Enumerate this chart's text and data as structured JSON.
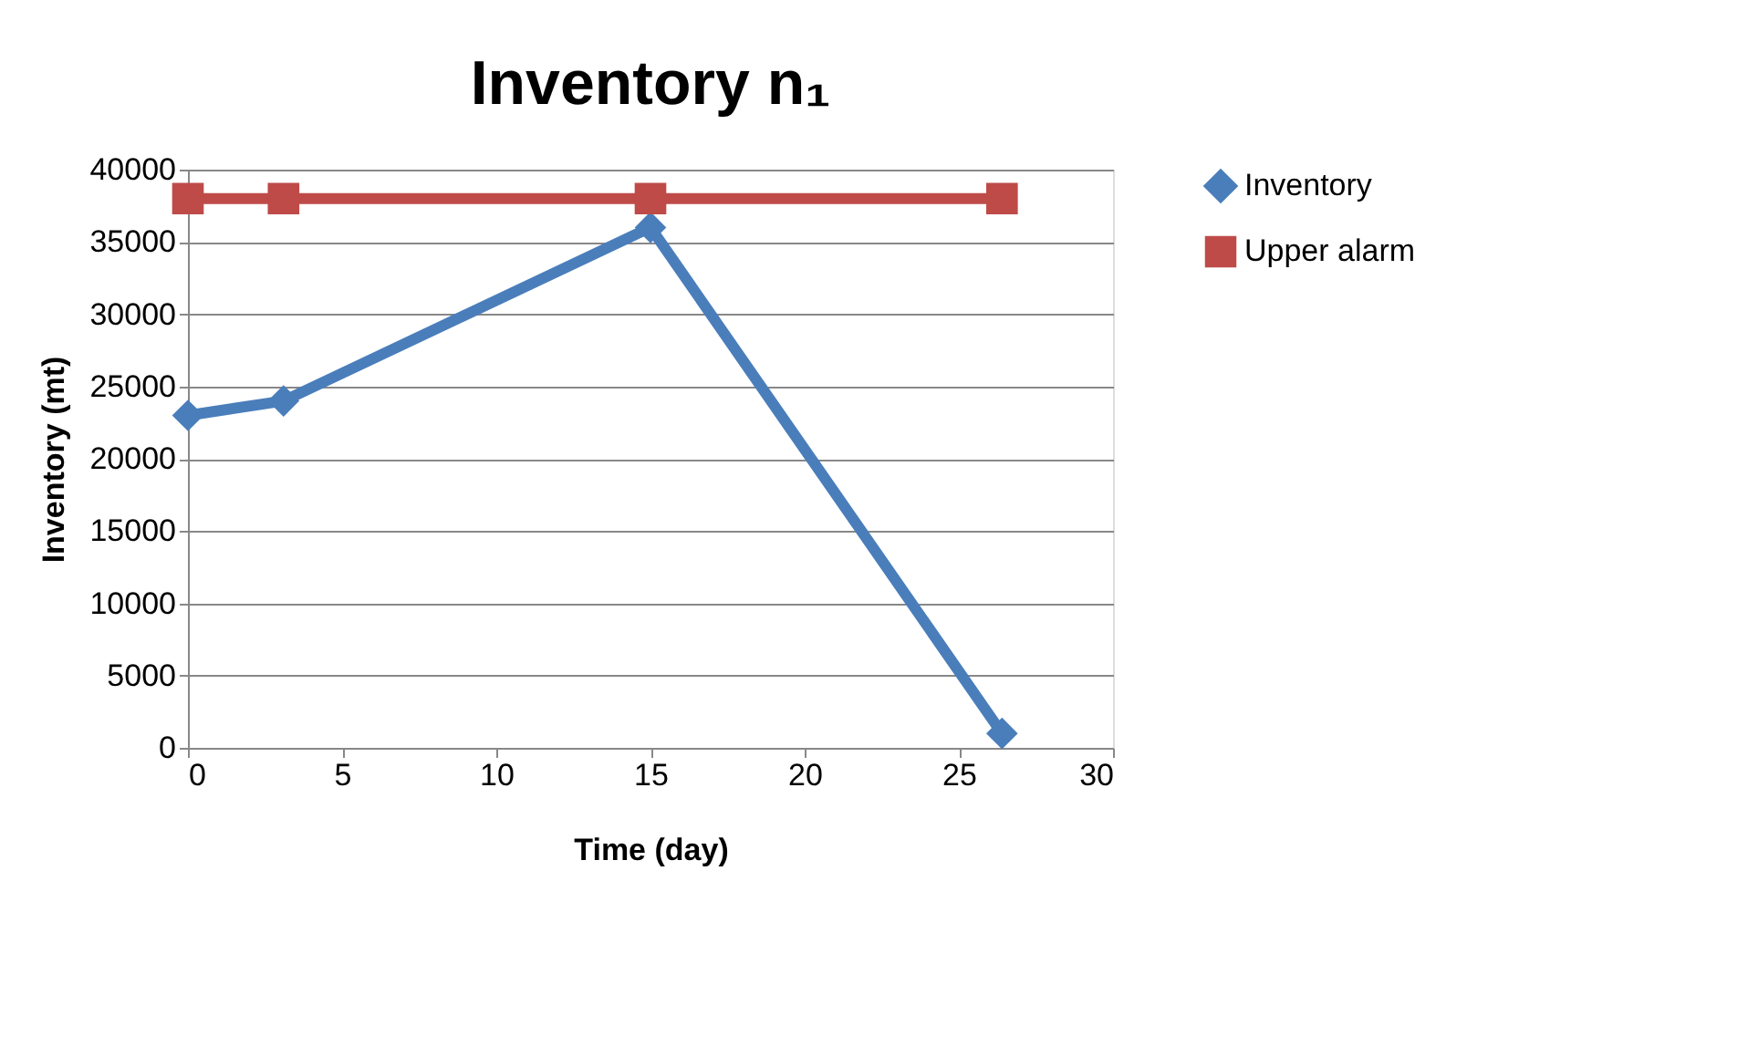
{
  "chart_data": {
    "type": "line",
    "title": "Inventory n₁",
    "xlabel": "Time (day)",
    "ylabel": "Inventory (mt)",
    "series": [
      {
        "name": "Inventory",
        "color": "#4a7ebb",
        "marker": "diamond",
        "x": [
          0,
          3.1,
          15,
          26.4
        ],
        "values": [
          23000,
          24000,
          36000,
          1000
        ]
      },
      {
        "name": "Upper alarm",
        "color": "#be4b48",
        "marker": "square",
        "x": [
          0,
          3.1,
          15,
          26.4
        ],
        "values": [
          38000,
          38000,
          38000,
          38000
        ]
      }
    ],
    "xlim": [
      0,
      30
    ],
    "xticks": [
      0,
      5,
      10,
      15,
      20,
      25,
      30
    ],
    "ylim": [
      0,
      40000
    ],
    "yticks": [
      0,
      5000,
      10000,
      15000,
      20000,
      25000,
      30000,
      35000,
      40000
    ],
    "grid": "y",
    "legend": "right",
    "line_style": "solid"
  }
}
